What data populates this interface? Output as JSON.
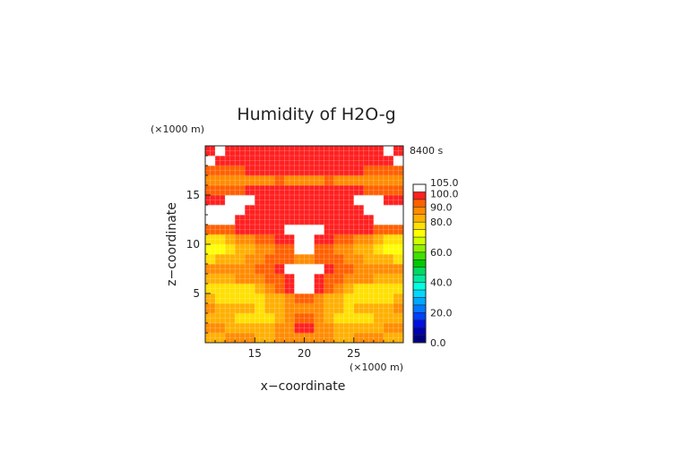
{
  "chart_data": {
    "type": "heatmap",
    "title": "Humidity of H2O-g",
    "xlabel": "x−coordinate",
    "ylabel": "z−coordinate",
    "x_unit": "(×1000 m)",
    "y_unit": "(×1000 m)",
    "time_label": "8400 s",
    "xlim": [
      10,
      30
    ],
    "ylim": [
      0,
      20
    ],
    "x_ticks": [
      15,
      20,
      25
    ],
    "y_ticks": [
      5,
      10,
      15
    ],
    "colorbar": {
      "levels": [
        0,
        5,
        10,
        15,
        20,
        25,
        30,
        35,
        40,
        45,
        50,
        55,
        60,
        65,
        70,
        75,
        80,
        85,
        90,
        95,
        100,
        105
      ],
      "tick_labels": [
        "0.0",
        "20.0",
        "40.0",
        "60.0",
        "80.0",
        "90.0",
        "100.0",
        "105.0"
      ],
      "tick_values": [
        0,
        20,
        40,
        60,
        80,
        90,
        100,
        105
      ],
      "colors": [
        "#00007f",
        "#0000b0",
        "#0010e0",
        "#0040ff",
        "#0078ff",
        "#00a8ff",
        "#00d8ff",
        "#00ffe0",
        "#00e8a0",
        "#00d860",
        "#00c800",
        "#40e000",
        "#90f000",
        "#d0ff00",
        "#ffff00",
        "#ffe000",
        "#ffb000",
        "#ff8c00",
        "#ff6000",
        "#ff2020",
        "#ffffff"
      ]
    },
    "field": {
      "x": [
        10.5,
        11.5,
        12.5,
        13.5,
        14.5,
        15.5,
        16.5,
        17.5,
        18.5,
        19.5,
        20.5,
        21.5,
        22.5,
        23.5,
        24.5,
        25.5,
        26.5,
        27.5,
        28.5,
        29.5
      ],
      "z": [
        0.5,
        1.5,
        2.5,
        3.5,
        4.5,
        5.5,
        6.5,
        7.5,
        8.5,
        9.5,
        10.5,
        11.5,
        12.5,
        13.5,
        14.5,
        15.5,
        16.5,
        17.5,
        18.5,
        19.5
      ],
      "values": [
        [
          84,
          84,
          85,
          85,
          85,
          84,
          84,
          85,
          86,
          87,
          87,
          86,
          85,
          84,
          84,
          85,
          85,
          85,
          84,
          84
        ],
        [
          86,
          85,
          84,
          83,
          82,
          82,
          83,
          85,
          87,
          95,
          95,
          87,
          85,
          83,
          82,
          82,
          83,
          84,
          85,
          86
        ],
        [
          84,
          82,
          80,
          78,
          77,
          77,
          79,
          83,
          88,
          91,
          91,
          88,
          83,
          79,
          77,
          77,
          78,
          80,
          82,
          84
        ],
        [
          85,
          84,
          83,
          82,
          80,
          79,
          80,
          82,
          85,
          87,
          87,
          85,
          82,
          80,
          79,
          80,
          82,
          83,
          84,
          85
        ],
        [
          80,
          79,
          78,
          77,
          77,
          78,
          80,
          84,
          88,
          91,
          91,
          88,
          84,
          80,
          78,
          77,
          77,
          78,
          79,
          80
        ],
        [
          79,
          78,
          77,
          76,
          77,
          80,
          85,
          90,
          96,
          100,
          100,
          96,
          90,
          85,
          80,
          77,
          76,
          77,
          78,
          79
        ],
        [
          84,
          83,
          84,
          85,
          86,
          88,
          90,
          93,
          98,
          101,
          101,
          98,
          93,
          90,
          88,
          86,
          85,
          84,
          83,
          84
        ],
        [
          86,
          86,
          87,
          88,
          89,
          90,
          92,
          95,
          100,
          102,
          102,
          100,
          95,
          92,
          90,
          89,
          88,
          87,
          86,
          86
        ],
        [
          78,
          80,
          82,
          84,
          86,
          88,
          90,
          94,
          92,
          88,
          88,
          92,
          94,
          90,
          88,
          86,
          84,
          82,
          80,
          78
        ],
        [
          70,
          74,
          78,
          81,
          84,
          86,
          89,
          91,
          94,
          101,
          101,
          94,
          91,
          89,
          86,
          84,
          81,
          78,
          74,
          70
        ],
        [
          77,
          79,
          82,
          85,
          88,
          90,
          92,
          95,
          99,
          102,
          102,
          99,
          95,
          92,
          90,
          88,
          85,
          82,
          79,
          77
        ],
        [
          92,
          93,
          94,
          95,
          95,
          96,
          97,
          99,
          101,
          102,
          102,
          101,
          99,
          97,
          96,
          95,
          95,
          94,
          93,
          92
        ],
        [
          101,
          101,
          100,
          96,
          97,
          96,
          97,
          96,
          97,
          96,
          96,
          97,
          96,
          97,
          96,
          97,
          96,
          100,
          101,
          101
        ],
        [
          101,
          101,
          101,
          100,
          96,
          96,
          96,
          97,
          98,
          97,
          97,
          98,
          97,
          96,
          96,
          96,
          100,
          101,
          101,
          101
        ],
        [
          96,
          97,
          100,
          101,
          101,
          99,
          96,
          96,
          95,
          95,
          95,
          95,
          96,
          96,
          99,
          101,
          101,
          100,
          97,
          96
        ],
        [
          92,
          92,
          93,
          94,
          95,
          96,
          96,
          95,
          96,
          97,
          97,
          96,
          95,
          96,
          96,
          95,
          94,
          93,
          92,
          92
        ],
        [
          88,
          88,
          87,
          86,
          86,
          87,
          89,
          92,
          89,
          85,
          85,
          89,
          92,
          89,
          87,
          86,
          86,
          87,
          88,
          88
        ],
        [
          93,
          92,
          93,
          94,
          95,
          96,
          96,
          97,
          98,
          99,
          99,
          98,
          97,
          96,
          96,
          95,
          94,
          93,
          92,
          93
        ],
        [
          101,
          98,
          96,
          96,
          96,
          96,
          96,
          96,
          96,
          96,
          96,
          96,
          96,
          96,
          96,
          96,
          96,
          96,
          98,
          101
        ],
        [
          96,
          101,
          97,
          96,
          96,
          96,
          96,
          96,
          96,
          96,
          96,
          96,
          96,
          96,
          96,
          96,
          96,
          97,
          101,
          96
        ]
      ]
    }
  }
}
